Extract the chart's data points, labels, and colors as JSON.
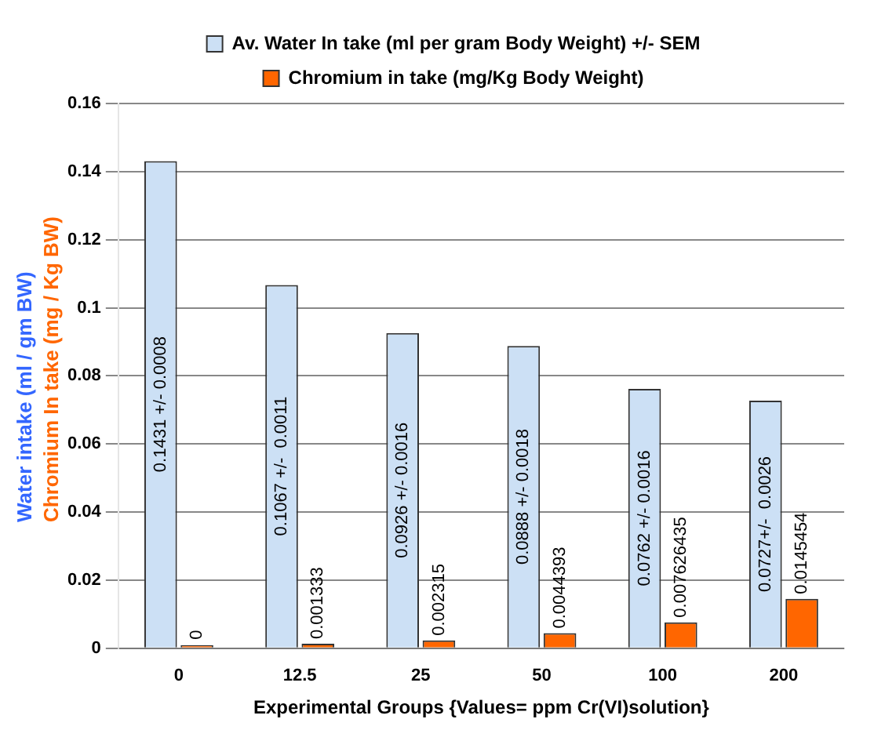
{
  "chart_data": {
    "type": "bar",
    "xlabel": "Experimental Groups {Values= ppm Cr(VI)solution}",
    "ylabel": "Water intake (ml / gm BW)",
    "annotations": [
      "Chromium In take (mg / Kg BW)"
    ],
    "categories": [
      "0",
      "12.5",
      "25",
      "50",
      "100",
      "200"
    ],
    "series": [
      {
        "name": "Av. Water In take (ml per gram Body Weight) +/- SEM",
        "color": "#cce0f5",
        "values": [
          0.1431,
          0.1067,
          0.0926,
          0.0888,
          0.0762,
          0.0727
        ],
        "value_labels": [
          "0.1431 +/- 0.0008",
          "0.1067 +/-  0.0011",
          "0.0926 +/- 0.0016",
          "0.0888 +/- 0.0018",
          "0.0762 +/- 0.0016",
          "0.0727+/-  0.0026"
        ]
      },
      {
        "name": "Chromium in take (mg/Kg Body Weight)",
        "color": "#ff6600",
        "values": [
          0,
          0.001333,
          0.002315,
          0.0044393,
          0.007626435,
          0.0145454
        ],
        "value_labels": [
          "0",
          "0.001333",
          "0.002315",
          "0.0044393",
          "0.007626435",
          "0.0145454"
        ]
      }
    ],
    "ylim": [
      0,
      0.16
    ],
    "yticks": [
      0,
      0.02,
      0.04,
      0.06,
      0.08,
      0.1,
      0.12,
      0.14,
      0.16
    ],
    "grid": "y",
    "legend": "top"
  }
}
